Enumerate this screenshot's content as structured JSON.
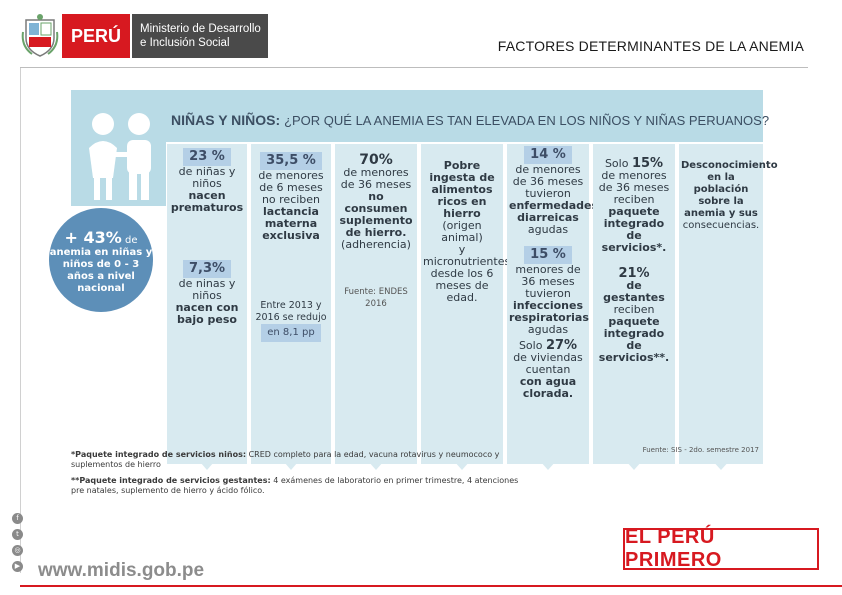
{
  "header": {
    "country": "PERÚ",
    "ministry_line1": "Ministerio de Desarrollo",
    "ministry_line2": "e Inclusión Social",
    "page_title": "FACTORES DETERMINANTES DE LA ANEMIA"
  },
  "infographic": {
    "title_bold": "NIÑAS Y NIÑOS:",
    "title_question": "¿POR QUÉ LA ANEMIA ES TAN ELEVADA EN LOS NIÑOS Y NIÑAS PERUANOS?",
    "circle": {
      "value": "+ 43%",
      "value_suffix": "de",
      "text": "anemia en niñas y niños de 0 - 3 años a nivel nacional"
    },
    "col1": {
      "a_pct": "23 %",
      "a_text": "de niñas y niños",
      "a_bold": "nacen prematuros",
      "b_pct": "7,3%",
      "b_text": "de ninas y niños",
      "b_bold": "nacen con bajo peso"
    },
    "col2": {
      "pct": "35,5 %",
      "text": "de menores de 6 meses no reciben",
      "bold": "lactancia materna exclusiva",
      "note": "Entre 2013 y 2016 se redujo",
      "note_pct": "en 8,1 pp"
    },
    "col3": {
      "pct": "70%",
      "text": "de menores de 36 meses",
      "bold": "no consumen suplemento de hierro.",
      "extra": "(adherencia)",
      "source": "Fuente: ENDES 2016"
    },
    "col4": {
      "bold": "Pobre ingesta de alimentos ricos en hierro",
      "text1": "(origen animal)",
      "text2": "y micronutrientes desde los 6 meses de edad."
    },
    "col5": {
      "a_pct": "14 %",
      "a_text": "de menores de 36 meses tuvieron",
      "a_bold": "enfermedades diarreicas",
      "a_suffix": "agudas",
      "b_pct": "15 %",
      "b_text": "menores de 36 meses tuvieron",
      "b_bold": "infecciones respiratorias",
      "b_suffix": "agudas",
      "c_prefix": "Solo",
      "c_pct": "27%",
      "c_text": "de viviendas cuentan",
      "c_bold": "con agua clorada."
    },
    "col6": {
      "a_prefix": "Solo",
      "a_pct": "15%",
      "a_text": "de menores de 36 meses reciben",
      "a_bold": "paquete integrado de servicios*.",
      "b_pct": "21%",
      "b_bold1": "de gestantes",
      "b_text": "reciben",
      "b_bold2": "paquete integrado de servicios**."
    },
    "col7": {
      "bold": "Desconocimiento en la población sobre la anemia y sus",
      "text": "consecuencias."
    },
    "footnote1_bold": "*Paquete integrado de servicios niños:",
    "footnote1": "CRED completo para la edad, vacuna rotavirus y neumococo y suplementos de hierro",
    "footnote2_bold": "**Paquete integrado de servicios gestantes:",
    "footnote2": "4 exámenes de laboratorio en primer trimestre, 4 atenciones pre natales, suplemento de hierro y ácido fólico.",
    "source": "Fuente: SIS - 2do. semestre 2017"
  },
  "footer": {
    "url": "www.midis.gob.pe",
    "brand": "EL PERÚ PRIMERO",
    "social_icons": [
      "facebook-icon",
      "twitter-icon",
      "instagram-icon",
      "youtube-icon"
    ]
  }
}
